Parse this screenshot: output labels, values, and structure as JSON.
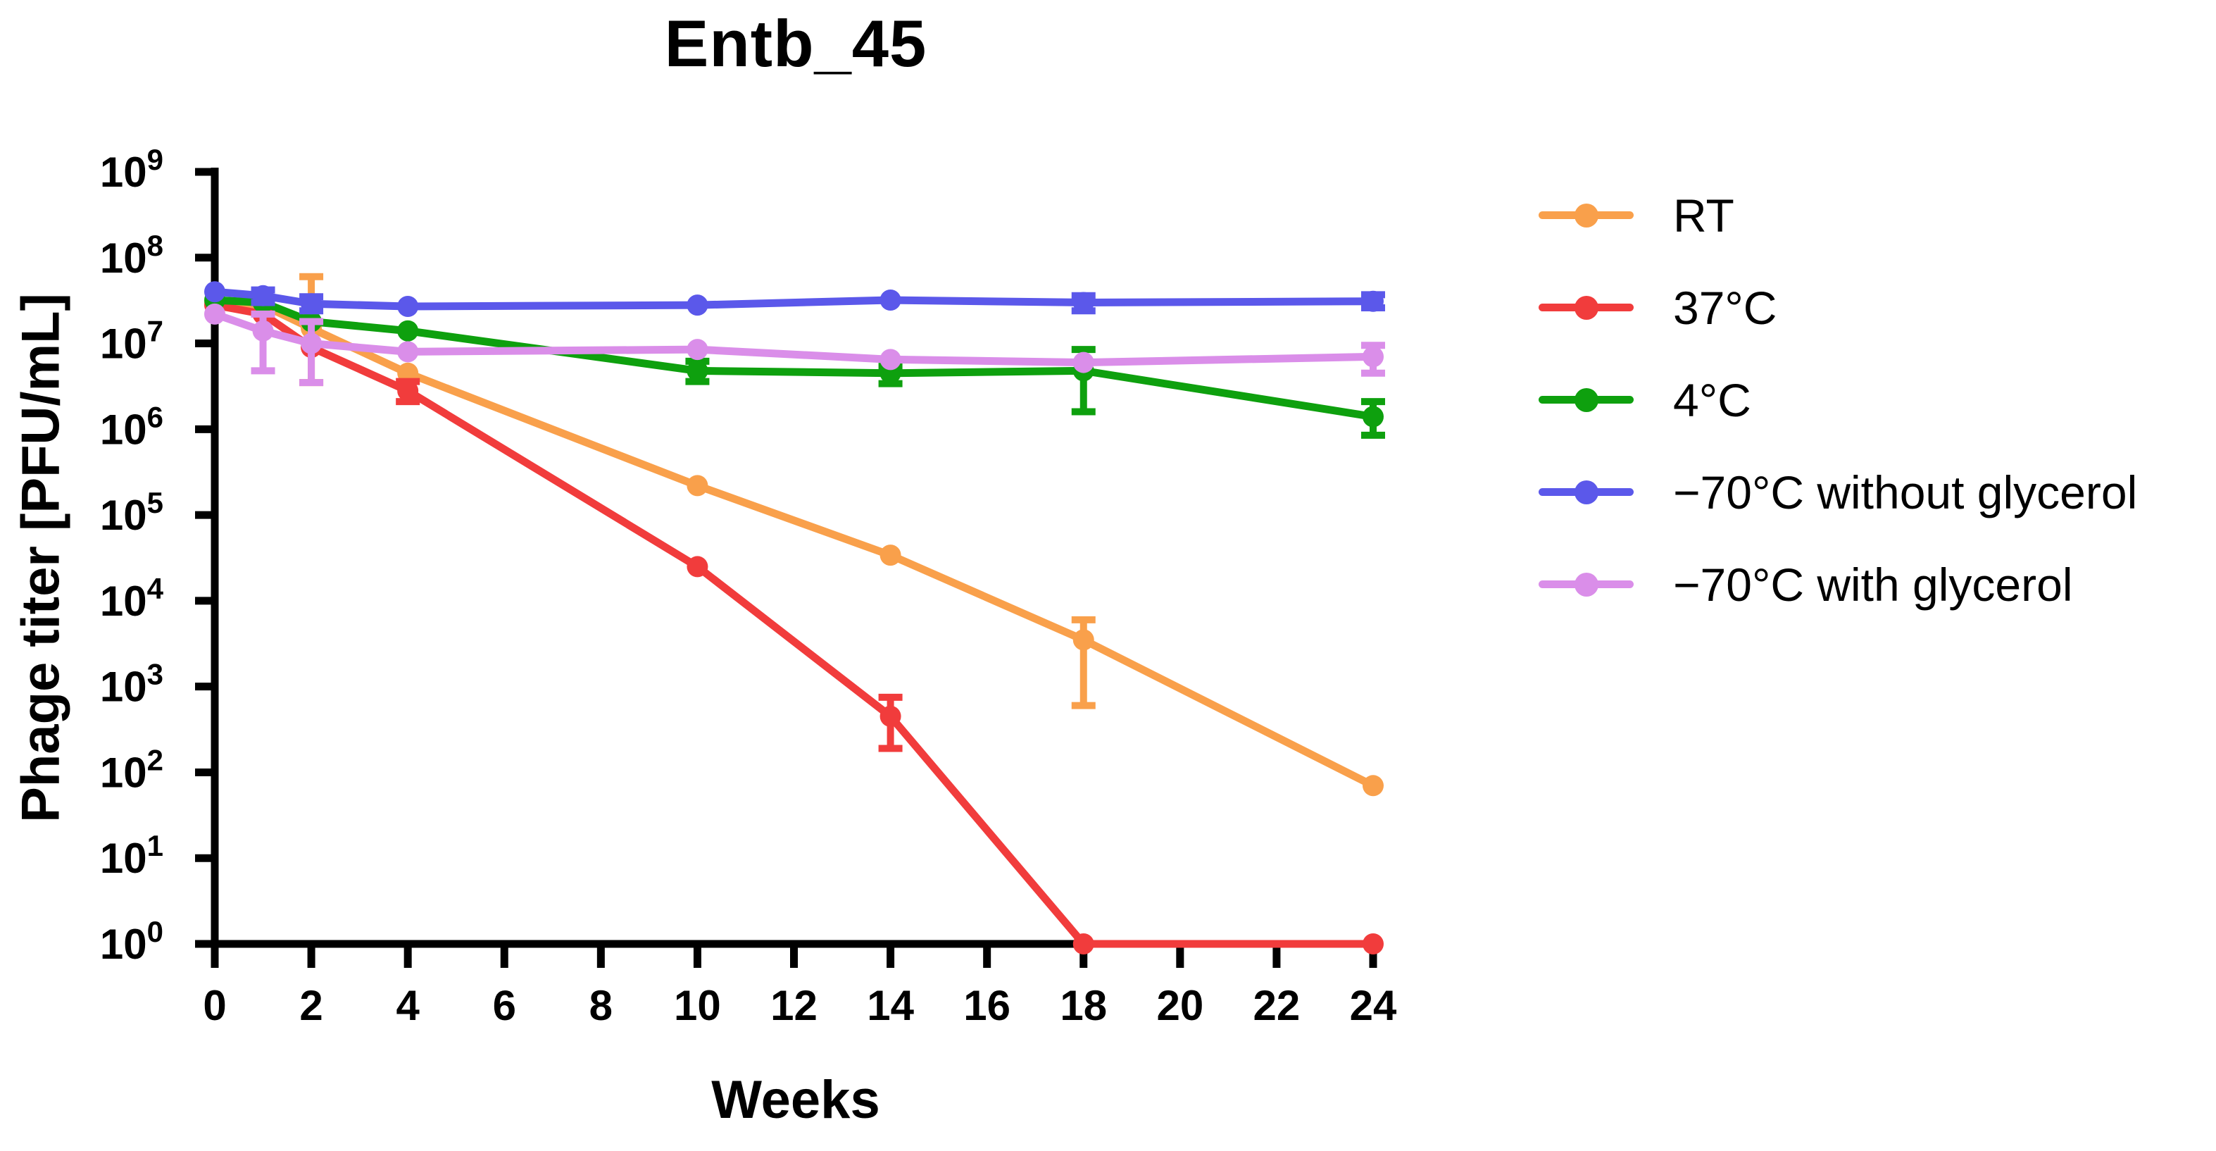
{
  "figure": {
    "title": "Entb_45"
  },
  "axes": {
    "x_label": "Weeks",
    "y_label": "Phage titer [PFU/mL]"
  },
  "chart_data": {
    "type": "line",
    "title": "Entb_45",
    "xlabel": "Weeks",
    "ylabel": "Phage titer [PFU/mL]",
    "grid": false,
    "legend_position": "right",
    "x_ticks": [
      0,
      2,
      4,
      6,
      8,
      10,
      12,
      14,
      16,
      18,
      20,
      22,
      24
    ],
    "y_tick_base": "10",
    "y_tick_exponents": [
      0,
      1,
      2,
      3,
      4,
      5,
      6,
      7,
      8,
      9
    ],
    "xlim": [
      0,
      24
    ],
    "ylim_exponents": [
      0,
      9
    ],
    "y_unit": "PFU/mL",
    "x_unit": "weeks",
    "axis_color": "#000000",
    "series": [
      {
        "name": "RT",
        "color": "#F9A04B",
        "points": [
          {
            "x": 0,
            "y": 30000000.0
          },
          {
            "x": 1,
            "y": 28000000.0
          },
          {
            "x": 2,
            "y": 15000000.0,
            "lo": 3500000.0,
            "hi": 60000000.0
          },
          {
            "x": 4,
            "y": 4500000.0
          },
          {
            "x": 10,
            "y": 220000.0
          },
          {
            "x": 14,
            "y": 34000.0
          },
          {
            "x": 18,
            "y": 3500.0,
            "lo": 600.0,
            "hi": 6000.0
          },
          {
            "x": 24,
            "y": 70.0
          }
        ]
      },
      {
        "name": "37°C",
        "color": "#F13C3C",
        "points": [
          {
            "x": 0,
            "y": 28000000.0
          },
          {
            "x": 1,
            "y": 22000000.0
          },
          {
            "x": 2,
            "y": 9000000.0
          },
          {
            "x": 4,
            "y": 2800000.0,
            "lo": 2100000.0,
            "hi": 3600000.0
          },
          {
            "x": 10,
            "y": 25000.0
          },
          {
            "x": 14,
            "y": 450.0,
            "lo": 190.0,
            "hi": 750.0
          },
          {
            "x": 18,
            "y": 1.0
          },
          {
            "x": 24,
            "y": 1.0
          }
        ]
      },
      {
        "name": "4°C",
        "color": "#0EA00E",
        "points": [
          {
            "x": 0,
            "y": 32000000.0
          },
          {
            "x": 1,
            "y": 30000000.0
          },
          {
            "x": 2,
            "y": 18000000.0
          },
          {
            "x": 4,
            "y": 14000000.0
          },
          {
            "x": 10,
            "y": 4800000.0,
            "lo": 3600000.0,
            "hi": 6200000.0
          },
          {
            "x": 14,
            "y": 4500000.0,
            "lo": 3400000.0,
            "hi": 5400000.0
          },
          {
            "x": 18,
            "y": 4800000.0,
            "lo": 1600000.0,
            "hi": 8500000.0
          },
          {
            "x": 24,
            "y": 1400000.0,
            "lo": 850000.0,
            "hi": 2100000.0
          }
        ]
      },
      {
        "name": "−70°C without glycerol",
        "color": "#5B58EA",
        "points": [
          {
            "x": 0,
            "y": 40000000.0
          },
          {
            "x": 1,
            "y": 36000000.0,
            "lo": 30000000.0,
            "hi": 42000000.0
          },
          {
            "x": 2,
            "y": 29000000.0,
            "lo": 24000000.0,
            "hi": 35000000.0
          },
          {
            "x": 4,
            "y": 27000000.0
          },
          {
            "x": 10,
            "y": 28000000.0
          },
          {
            "x": 14,
            "y": 32000000.0
          },
          {
            "x": 18,
            "y": 30000000.0,
            "lo": 24000000.0,
            "hi": 36000000.0
          },
          {
            "x": 24,
            "y": 31000000.0,
            "lo": 26000000.0,
            "hi": 37000000.0
          }
        ]
      },
      {
        "name": "−70°C with glycerol",
        "color": "#DA8EE9",
        "points": [
          {
            "x": 0,
            "y": 22000000.0
          },
          {
            "x": 1,
            "y": 14000000.0,
            "lo": 4800000.0,
            "hi": 22000000.0
          },
          {
            "x": 2,
            "y": 10000000.0,
            "lo": 3500000.0,
            "hi": 18000000.0
          },
          {
            "x": 4,
            "y": 8000000.0
          },
          {
            "x": 10,
            "y": 8500000.0
          },
          {
            "x": 14,
            "y": 6500000.0
          },
          {
            "x": 18,
            "y": 6000000.0
          },
          {
            "x": 24,
            "y": 7000000.0,
            "lo": 4500000.0,
            "hi": 9500000.0
          }
        ]
      }
    ]
  }
}
